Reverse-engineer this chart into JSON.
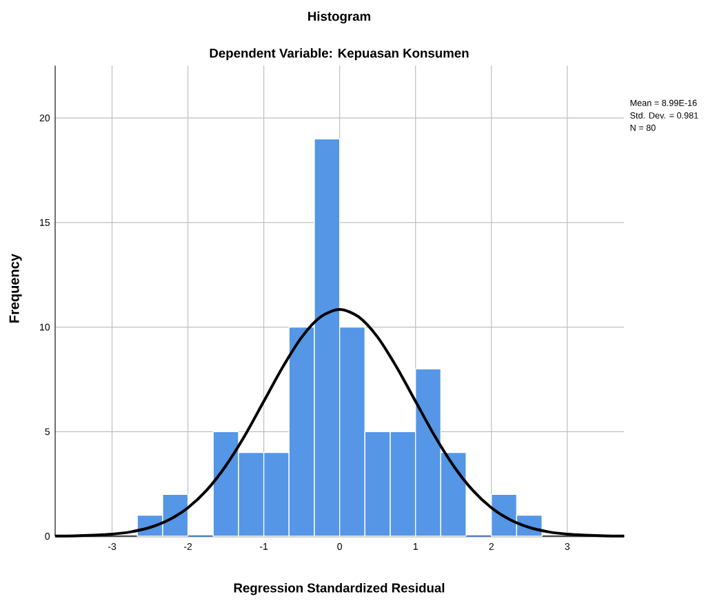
{
  "chart_data": {
    "type": "histogram",
    "title": "Histogram",
    "subtitle": "Dependent Variable: Kepuasan Konsumen",
    "xlabel": "Regression Standardized Residual",
    "ylabel": "Frequency",
    "annotations": [
      "Mean = 8.99E-16",
      "Std. Dev. = 0.981",
      "N = 80"
    ],
    "bins": [
      -2.667,
      -2.333,
      -2.0,
      -1.667,
      -1.333,
      -1.0,
      -0.667,
      -0.333,
      0.0,
      0.333,
      0.667,
      1.0,
      1.333,
      1.667,
      2.0,
      2.333,
      2.667
    ],
    "values": [
      1,
      2,
      0,
      5,
      4,
      4,
      10,
      19,
      10,
      5,
      5,
      8,
      4,
      0,
      2,
      1
    ],
    "color": "#5596e6",
    "series": [
      {
        "type": "line",
        "color": "#000000",
        "x": [
          -3.75,
          -3.5,
          -3.25,
          -3.0,
          -2.75,
          -2.5,
          -2.25,
          -2.0,
          -1.75,
          -1.5,
          -1.25,
          -1.0,
          -0.75,
          -0.5,
          -0.25,
          0.0,
          0.25,
          0.5,
          0.75,
          1.0,
          1.25,
          1.5,
          1.75,
          2.0,
          2.25,
          2.5,
          2.75,
          3.0,
          3.25,
          3.5,
          3.75
        ],
        "values": [
          0.01,
          0.02,
          0.05,
          0.1,
          0.21,
          0.42,
          0.78,
          1.36,
          2.21,
          3.37,
          4.81,
          6.45,
          8.09,
          9.52,
          10.49,
          10.84,
          10.49,
          9.52,
          8.09,
          6.45,
          4.81,
          3.37,
          2.21,
          1.36,
          0.78,
          0.42,
          0.21,
          0.1,
          0.05,
          0.02,
          0.01
        ]
      }
    ],
    "xlim": [
      -3.75,
      3.75
    ],
    "ylim": [
      0,
      22.5
    ],
    "xticks": [
      -3,
      -2,
      -1,
      0,
      1,
      2,
      3
    ],
    "yticks": [
      0,
      5,
      10,
      15,
      20
    ],
    "grid": true
  }
}
